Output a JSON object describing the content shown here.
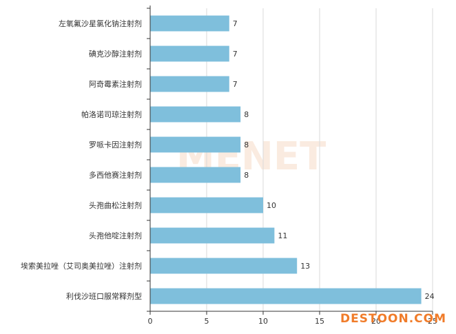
{
  "chart_data": {
    "type": "bar",
    "orientation": "horizontal",
    "categories": [
      "左氧氟沙星氯化钠注射剂",
      "碘克沙醇注射剂",
      "阿奇霉素注射剂",
      "帕洛诺司琼注射剂",
      "罗哌卡因注射剂",
      "多西他赛注射剂",
      "头孢曲松注射剂",
      "头孢他啶注射剂",
      "埃索美拉唑（艾司奥美拉唑）注射剂",
      "利伐沙班口服常释剂型"
    ],
    "values": [
      7,
      7,
      7,
      8,
      8,
      8,
      10,
      11,
      13,
      24
    ],
    "xlim": [
      0,
      25
    ],
    "xticks": [
      "0",
      "5",
      "10",
      "15",
      "20",
      "25"
    ],
    "grid": "vertical",
    "bar_color": "#7fbfdc",
    "title": "",
    "xlabel": "",
    "ylabel": ""
  },
  "watermarks": {
    "center": "MENET",
    "corner": "DESTOON.COM"
  }
}
